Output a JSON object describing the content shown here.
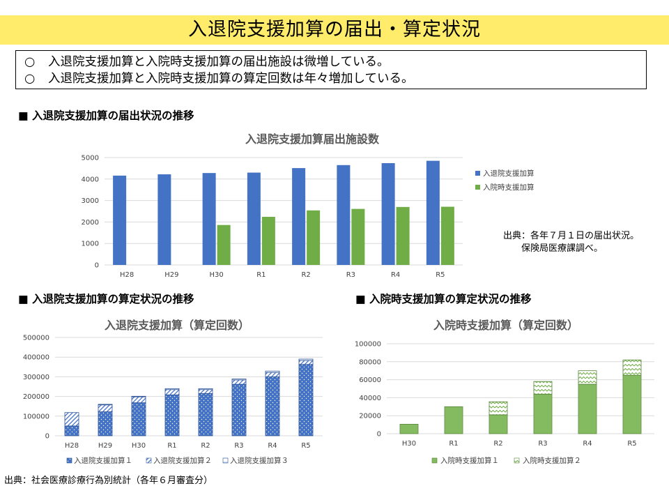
{
  "page": {
    "title": "入退院支援加算の届出・算定状況",
    "summary": [
      "入退院支援加算と入院時支援加算の届出施設は微増している。",
      "入退院支援加算と入院時支援加算の算定回数は年々増加している。"
    ],
    "bullet": "○",
    "sections": {
      "facilities": "■ 入退院支援加算の届出状況の推移",
      "discharge_claims": "■ 入退院支援加算の算定状況の推移",
      "admission_claims": "■ 入院時支援加算の算定状況の推移"
    },
    "note_facilities": [
      "出典：各年７月１日の届出状況。",
      "保険局医療課調べ。"
    ],
    "footer_source": "出典：社会医療診療行為別統計（各年６月審査分）"
  },
  "colors": {
    "blue": "#4472c4",
    "green": "#70ad47",
    "blue_border": "#2f5597",
    "green_border": "#548235",
    "title_bg": "#ffec6b",
    "grid": "#d9d9d9"
  },
  "chart_data": [
    {
      "type": "bar",
      "title": "入退院支援加算届出施設数",
      "categories": [
        "H28",
        "H29",
        "H30",
        "R1",
        "R2",
        "R3",
        "R4",
        "R5"
      ],
      "series": [
        {
          "name": "入退院支援加算",
          "values": [
            4160,
            4220,
            4280,
            4300,
            4510,
            4650,
            4740,
            4850
          ]
        },
        {
          "name": "入院時支援加算",
          "values": [
            null,
            null,
            1860,
            2240,
            2540,
            2610,
            2700,
            2710
          ]
        }
      ],
      "ylim": [
        0,
        5000
      ],
      "yticks": [
        0,
        1000,
        2000,
        3000,
        4000,
        5000
      ],
      "grid": true,
      "legend": "right"
    },
    {
      "type": "bar",
      "stacked": true,
      "title": "入退院支援加算（算定回数）",
      "categories": [
        "H28",
        "H29",
        "H30",
        "R1",
        "R2",
        "R3",
        "R4",
        "R5"
      ],
      "series": [
        {
          "name": "入退院支援加算１",
          "values": [
            50000,
            122000,
            168000,
            208000,
            215000,
            262000,
            300000,
            363000
          ]
        },
        {
          "name": "入退院支援加算２",
          "values": [
            68000,
            35000,
            30000,
            27000,
            20000,
            22000,
            22000,
            20000
          ]
        },
        {
          "name": "入退院支援加算３",
          "values": [
            0,
            3000,
            3000,
            5000,
            5000,
            5000,
            7000,
            7000
          ]
        }
      ],
      "ylim": [
        0,
        500000
      ],
      "yticks": [
        0,
        100000,
        200000,
        300000,
        400000,
        500000
      ],
      "grid": true,
      "legend": "bottom"
    },
    {
      "type": "bar",
      "stacked": true,
      "title": "入院時支援加算（算定回数）",
      "categories": [
        "H30",
        "R1",
        "R2",
        "R3",
        "R4",
        "R5"
      ],
      "series": [
        {
          "name": "入院時支援加算１",
          "values": [
            10500,
            30000,
            21000,
            44000,
            55000,
            65000
          ]
        },
        {
          "name": "入院時支援加算２",
          "values": [
            0,
            0,
            14500,
            14000,
            15000,
            17000
          ]
        }
      ],
      "ylim": [
        0,
        100000
      ],
      "yticks": [
        0,
        20000,
        40000,
        60000,
        80000,
        100000
      ],
      "grid": true,
      "legend": "bottom"
    }
  ]
}
